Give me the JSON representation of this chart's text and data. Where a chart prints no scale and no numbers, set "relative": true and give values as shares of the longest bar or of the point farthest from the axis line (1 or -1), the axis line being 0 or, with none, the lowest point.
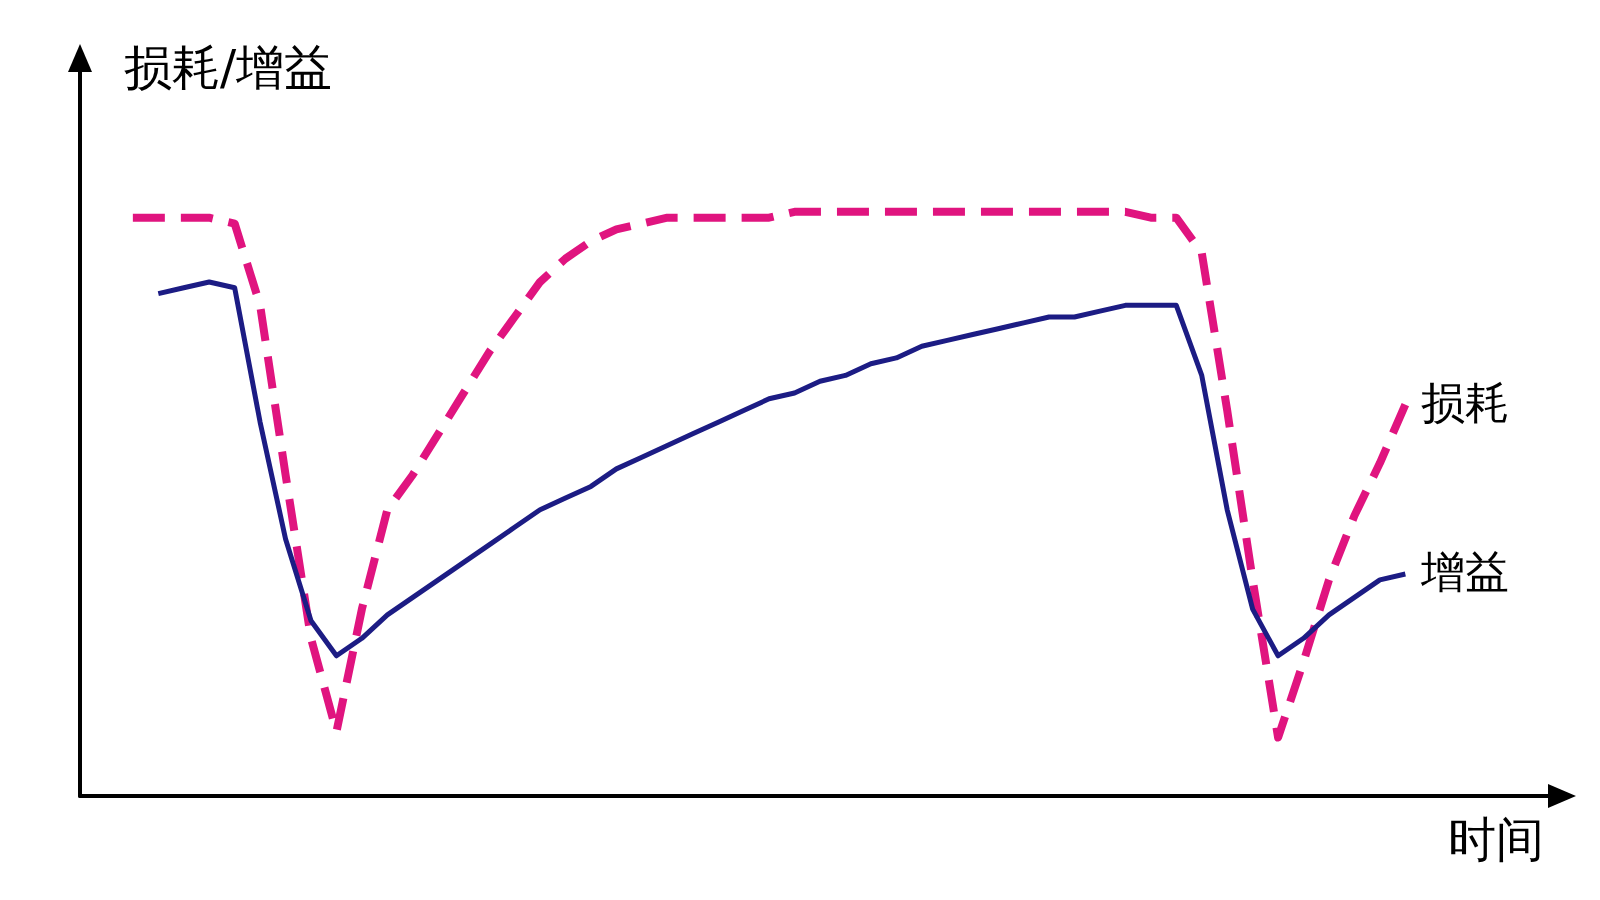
{
  "chart_data": {
    "type": "line",
    "relative": true,
    "ylabel": "损耗/增益",
    "xlabel": "时间",
    "legend": false,
    "grid": false,
    "marker": "none",
    "categories": [
      null,
      null,
      null,
      null,
      null,
      null,
      null,
      null,
      null,
      null,
      null,
      null,
      null,
      null,
      null,
      null,
      null,
      null,
      null,
      null,
      null,
      null,
      null,
      null,
      null,
      null,
      null,
      null,
      null,
      null,
      null,
      null,
      null,
      null,
      null,
      null,
      null,
      null,
      null,
      null,
      null,
      null,
      null,
      null,
      null,
      null,
      null,
      null,
      null,
      null,
      null
    ],
    "series": [
      {
        "name": "损耗",
        "color": "#e0147f",
        "line_style": "dashed",
        "values": [
          0.99,
          0.99,
          0.99,
          0.99,
          0.98,
          0.84,
          0.55,
          0.27,
          0.11,
          0.32,
          0.49,
          0.55,
          0.62,
          0.69,
          0.76,
          0.82,
          0.88,
          0.92,
          0.95,
          0.97,
          0.98,
          0.99,
          0.99,
          0.99,
          0.99,
          0.99,
          1,
          1,
          1,
          1,
          1,
          1,
          1,
          1,
          1,
          1,
          1,
          1,
          1,
          1,
          0.99,
          0.99,
          0.93,
          0.66,
          0.37,
          0.1,
          0.23,
          0.37,
          0.48,
          0.57,
          0.67
        ]
      },
      {
        "name": "增益",
        "color": "#1c1c84",
        "line_style": "solid",
        "values": [
          null,
          0.86,
          0.87,
          0.88,
          0.87,
          0.64,
          0.44,
          0.3,
          0.24,
          0.27,
          0.31,
          0.34,
          0.37,
          0.4,
          0.43,
          0.46,
          0.49,
          0.51,
          0.53,
          0.56,
          0.58,
          0.6,
          0.62,
          0.64,
          0.66,
          0.68,
          0.69,
          0.71,
          0.72,
          0.74,
          0.75,
          0.77,
          0.78,
          0.79,
          0.8,
          0.81,
          0.82,
          0.82,
          0.83,
          0.84,
          0.84,
          0.84,
          0.72,
          0.49,
          0.32,
          0.24,
          0.27,
          0.31,
          0.34,
          0.37,
          0.38
        ]
      }
    ]
  }
}
